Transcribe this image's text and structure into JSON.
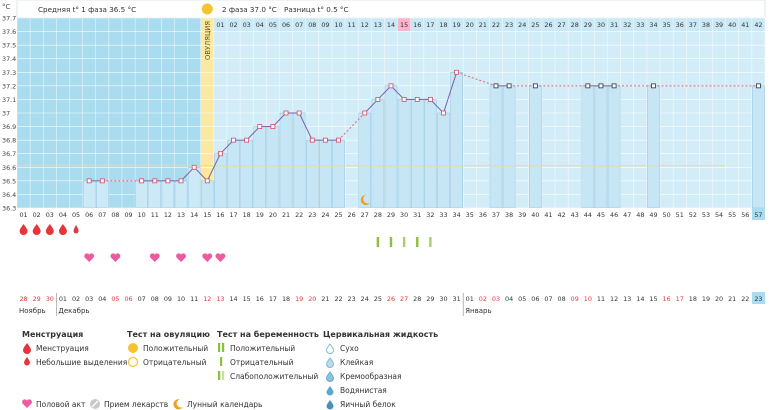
{
  "colors": {
    "phase1": "#a9dcef",
    "phase2": "#d3edf8",
    "ovulation": "#fbe9a1",
    "ovulation_dot": "#f5c330",
    "highlight": "#f7b4cc",
    "line": "#7b61a8",
    "red": "#e8343b",
    "coverline": "#e3e37a",
    "pink": "#ee5aa0",
    "green": "#8cbf3f"
  },
  "chart_data": {
    "type": "line",
    "title": "Basal body temperature",
    "yunit": "°C",
    "ylim": [
      36.3,
      37.7
    ],
    "yticks": [
      "37.7",
      "37.6",
      "37.5",
      "37.4",
      "37.3",
      "37.2",
      "37.1",
      "37",
      "36.9",
      "36.8",
      "36.7",
      "36.6",
      "36.5",
      "36.4",
      "36.3"
    ],
    "header": {
      "phase1": "Средняя t° 1 фаза 36.5 °C",
      "phase2": "2 фаза 37.0 °C",
      "diff": "Разница t° 0.5 °C"
    },
    "ovulation_label": "ОВУЛЯЦИЯ",
    "ovulation_index": 14,
    "cover_line": 36.61,
    "phase2_days": [
      "01",
      "02",
      "03",
      "04",
      "05",
      "06",
      "07",
      "08",
      "09",
      "10",
      "11",
      "12",
      "13",
      "14",
      "15",
      "16",
      "17",
      "18",
      "19",
      "20",
      "21",
      "22",
      "23",
      "24",
      "25",
      "26",
      "27",
      "28",
      "29",
      "30",
      "31",
      "32",
      "33",
      "34",
      "35",
      "36",
      "37",
      "38",
      "39",
      "40",
      "41",
      "42"
    ],
    "highlight_phase2_index": 14,
    "cycle_days": [
      "01",
      "02",
      "03",
      "04",
      "05",
      "06",
      "07",
      "08",
      "09",
      "10",
      "11",
      "12",
      "13",
      "14",
      "15",
      "16",
      "17",
      "18",
      "19",
      "20",
      "21",
      "22",
      "23",
      "24",
      "25",
      "26",
      "27",
      "28",
      "29",
      "30",
      "31",
      "32",
      "33",
      "34",
      "35",
      "36",
      "37",
      "38",
      "39",
      "40",
      "41",
      "42",
      "43",
      "44",
      "45",
      "46",
      "47",
      "48",
      "49",
      "50",
      "51",
      "52",
      "53",
      "54",
      "55",
      "56",
      "57"
    ],
    "current_cycle_index": 56,
    "dates": [
      "28",
      "29",
      "30",
      "01",
      "02",
      "03",
      "04",
      "05",
      "06",
      "07",
      "08",
      "09",
      "10",
      "11",
      "12",
      "13",
      "14",
      "15",
      "16",
      "17",
      "18",
      "19",
      "20",
      "21",
      "22",
      "23",
      "24",
      "25",
      "26",
      "27",
      "28",
      "29",
      "30",
      "31",
      "01",
      "02",
      "03",
      "04",
      "05",
      "06",
      "07",
      "08",
      "09",
      "10",
      "11",
      "12",
      "13",
      "14",
      "15",
      "16",
      "17",
      "18",
      "19",
      "20",
      "21",
      "22",
      "23"
    ],
    "weekend_dates": [
      0,
      1,
      2,
      7,
      8,
      14,
      15,
      21,
      22,
      28,
      29,
      35,
      36,
      42,
      43,
      49,
      50
    ],
    "months": [
      {
        "name": "Ноябрь",
        "start": 0
      },
      {
        "name": "Декабрь",
        "start": 3
      },
      {
        "name": "Январь",
        "start": 34
      }
    ],
    "temps": [
      null,
      null,
      null,
      null,
      null,
      36.5,
      36.5,
      null,
      null,
      36.5,
      36.5,
      36.5,
      36.5,
      36.6,
      36.5,
      36.7,
      36.8,
      36.8,
      36.9,
      36.9,
      37.0,
      37.0,
      36.8,
      36.8,
      36.8,
      null,
      37.0,
      37.1,
      37.2,
      37.1,
      37.1,
      37.1,
      37.0,
      37.3,
      null,
      null,
      37.2,
      37.2,
      null,
      37.2,
      null,
      null,
      null,
      37.2,
      37.2,
      37.2,
      null,
      null,
      37.2,
      null,
      null,
      null,
      null,
      null,
      null,
      null,
      37.2
    ],
    "menstruation_days": [
      0,
      1,
      2,
      3
    ],
    "light_bleeding_days": [
      4
    ],
    "intercourse_days": [
      5,
      7,
      10,
      12,
      14,
      15
    ],
    "pregnancy_test_positive": [
      27
    ],
    "pregnancy_test_weak": [
      28,
      29,
      30,
      31
    ],
    "moon_index": 26
  },
  "legend": {
    "menstruation": {
      "title": "Менструация",
      "items": [
        "Менструация",
        "Небольшие выделения"
      ]
    },
    "ovulation_test": {
      "title": "Тест на овуляцию",
      "items": [
        "Положительный",
        "Отрицательный"
      ]
    },
    "pregnancy_test": {
      "title": "Тест на беременность",
      "items": [
        "Положительный",
        "Отрицательный",
        "Слабоположительный"
      ]
    },
    "cervical": {
      "title": "Цервикальная жидкость",
      "items": [
        "Сухо",
        "Клейкая",
        "Кремообразная",
        "Водянистая",
        "Яичный белок"
      ]
    },
    "bottom": [
      "Половой акт",
      "Прием лекарств",
      "Лунный календарь"
    ]
  }
}
